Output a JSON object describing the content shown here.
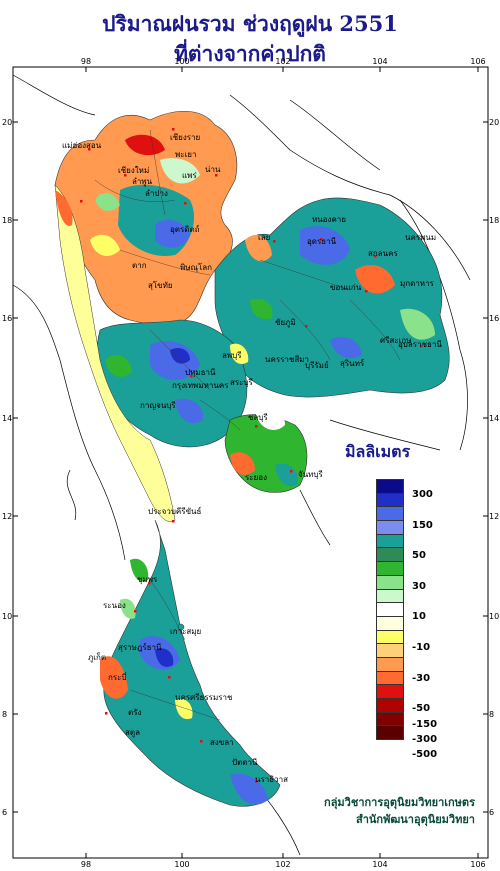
{
  "title_line1": "ปริมาณฝนรวม ช่วงฤดูฝน 2551",
  "title_line2": "ที่ต่างจากค่าปกติ",
  "legend_title": "มิลลิเมตร",
  "legend": {
    "colors": [
      "#0a0a8a",
      "#1f2fc8",
      "#4a6ae8",
      "#7b8ef0",
      "#1aa098",
      "#2e8b57",
      "#2fb52f",
      "#8ae28a",
      "#cdf7cd",
      "#ffffff",
      "#ffffe0",
      "#ffff66",
      "#ffd07a",
      "#ff9a50",
      "#ff6a30",
      "#e01010",
      "#b00000",
      "#800000",
      "#5a0000"
    ],
    "labels": [
      "300",
      "",
      "150",
      "",
      "50",
      "",
      "30",
      "",
      "10",
      "",
      "-10",
      "",
      "-30",
      "",
      "-50",
      "-150",
      "-300",
      "-500"
    ]
  },
  "axis": {
    "lon_ticks": [
      "98",
      "100",
      "102",
      "104",
      "106"
    ],
    "lat_ticks": [
      "20",
      "18",
      "16",
      "14",
      "12",
      "10",
      "8",
      "6"
    ]
  },
  "places": [
    "เชียงใหม่",
    "ลำพูน",
    "ลำปาง",
    "แพร่",
    "น่าน",
    "พะเยา",
    "เชียงราย",
    "แม่ฮ่องสอน",
    "ตาก",
    "อุตรดิตถ์",
    "พิษณุโลก",
    "สุโขทัย",
    "หนองคาย",
    "อุดรธานี",
    "นครพนม",
    "สกลนคร",
    "เลย",
    "ขอนแก่น",
    "มุกดาหาร",
    "ชัยภูมิ",
    "นครราชสีมา",
    "บุรีรัมย์",
    "สุรินทร์",
    "ศรีสะเกษ",
    "อุบลราชธานี",
    "ลพบุรี",
    "สระบุรี",
    "กรุงเทพมหานคร",
    "ปทุมธานี",
    "กาญจนบุรี",
    "ชลบุรี",
    "ระยอง",
    "จันทบุรี",
    "ประจวบคีรีขันธ์",
    "ชุมพร",
    "ระนอง",
    "สุราษฎร์ธานี",
    "เกาะสมุย",
    "ภูเก็ต",
    "กระบี่",
    "นครศรีธรรมราช",
    "สงขลา",
    "ปัตตานี",
    "นราธิวาส",
    "สตูล",
    "ตรัง"
  ],
  "credit_line1": "กลุ่มวิชาการอุตุนิยมวิทยาเกษตร",
  "credit_line2": "สำนักพัฒนาอุตุนิยมวิทยา"
}
